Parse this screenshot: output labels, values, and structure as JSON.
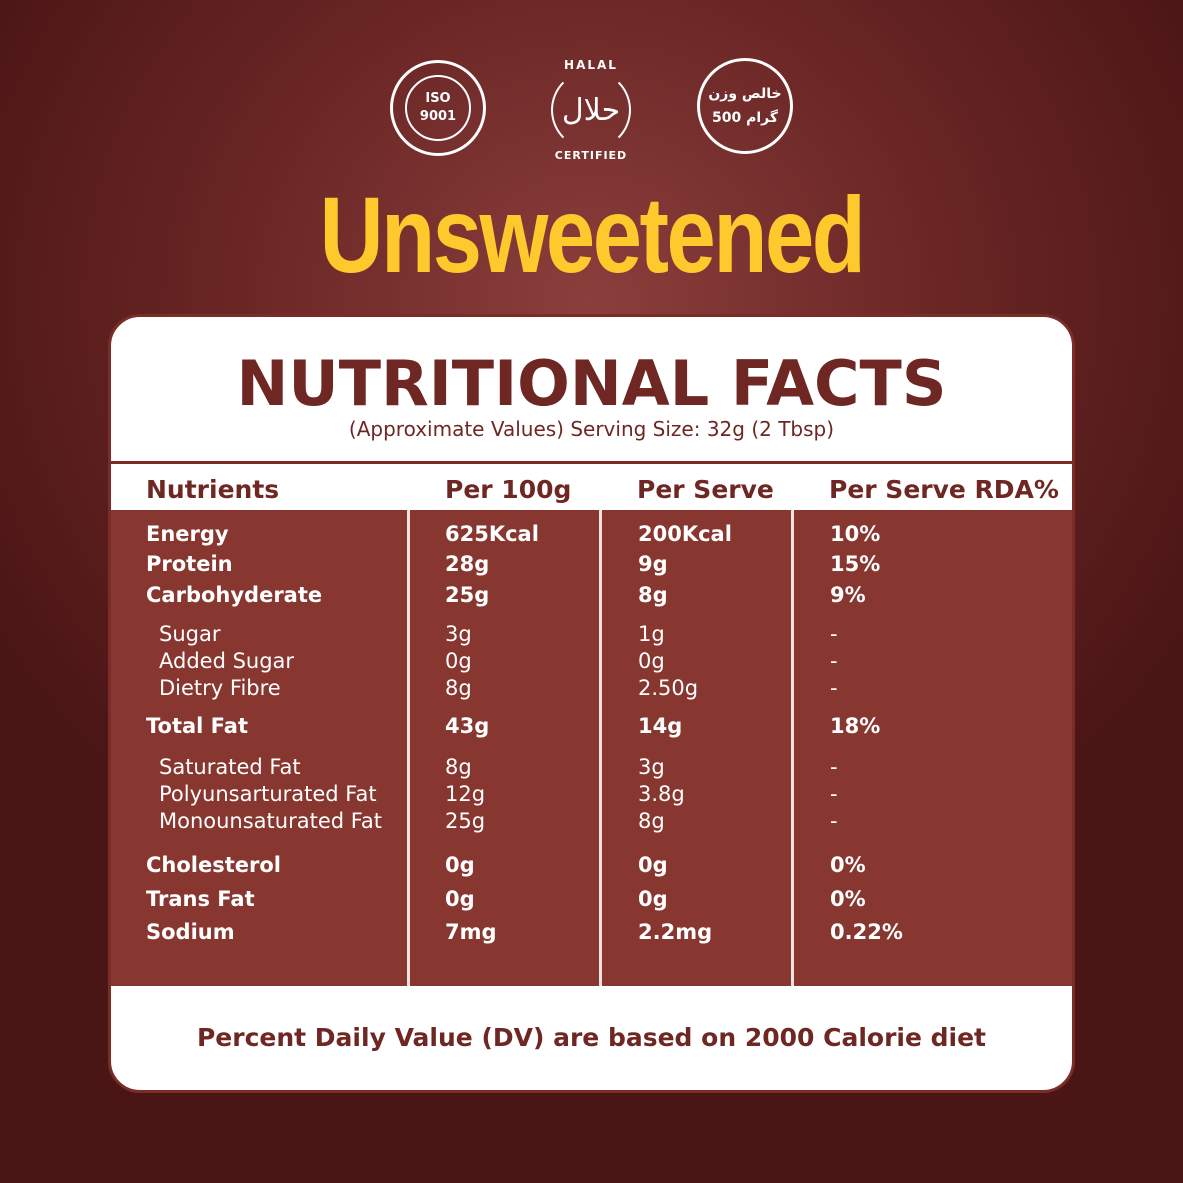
{
  "badges": {
    "iso": [
      "ISO",
      "9001"
    ],
    "halal": {
      "top": "HALAL",
      "arabic": "حلال",
      "bottom": "CERTIFIED"
    },
    "weight": [
      "خالص وزن",
      "500 گرام"
    ]
  },
  "title": "Unsweetened",
  "card": {
    "title": "NUTRITIONAL FACTS",
    "subtitle": "(Approximate Values) Serving Size: 32g (2 Tbsp)",
    "headers": [
      "Nutrients",
      "Per 100g",
      "Per Serve",
      "Per Serve RDA%"
    ],
    "rows": [
      {
        "name": "Energy",
        "per100": "625Kcal",
        "serve": "200Kcal",
        "rda": "10%",
        "bold": true
      },
      {
        "name": "Protein",
        "per100": "28g",
        "serve": "9g",
        "rda": "15%",
        "bold": true
      },
      {
        "name": "Carbohyderate",
        "per100": "25g",
        "serve": "8g",
        "rda": "9%",
        "bold": true
      },
      {
        "name": "Sugar",
        "per100": "3g",
        "serve": "1g",
        "rda": "-",
        "bold": false
      },
      {
        "name": "Added Sugar",
        "per100": "0g",
        "serve": "0g",
        "rda": "-",
        "bold": false
      },
      {
        "name": "Dietry Fibre",
        "per100": "8g",
        "serve": "2.50g",
        "rda": "-",
        "bold": false
      },
      {
        "name": "Total Fat",
        "per100": "43g",
        "serve": "14g",
        "rda": "18%",
        "bold": true
      },
      {
        "name": "Saturated Fat",
        "per100": "8g",
        "serve": "3g",
        "rda": "-",
        "bold": false
      },
      {
        "name": "Polyunsarturated Fat",
        "per100": "12g",
        "serve": "3.8g",
        "rda": "-",
        "bold": false
      },
      {
        "name": "Monounsaturated Fat",
        "per100": "25g",
        "serve": "8g",
        "rda": "-",
        "bold": false
      },
      {
        "name": "Cholesterol",
        "per100": "0g",
        "serve": "0g",
        "rda": "0%",
        "bold": true
      },
      {
        "name": "Trans Fat",
        "per100": "0g",
        "serve": "0g",
        "rda": "0%",
        "bold": true
      },
      {
        "name": "Sodium",
        "per100": "7mg",
        "serve": "2.2mg",
        "rda": "0.22%",
        "bold": true
      }
    ],
    "footer": "Percent Daily Value (DV) are based on 2000 Calorie diet"
  },
  "colors": {
    "accent": "#fdc92c",
    "table": "#873730",
    "text": "#6e2723"
  }
}
